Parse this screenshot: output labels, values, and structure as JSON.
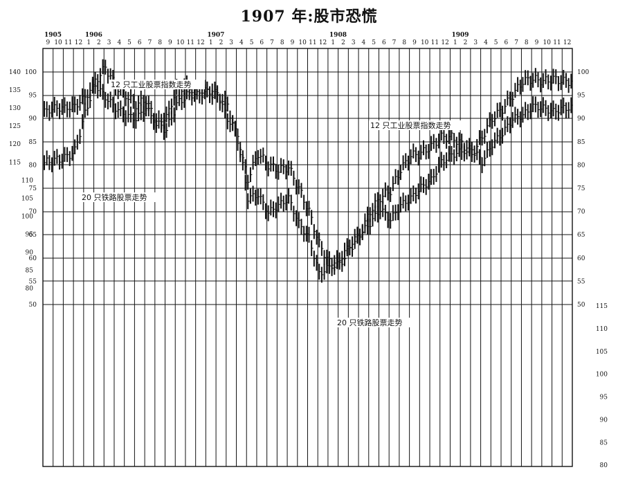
{
  "title": "1907 年:股市恐慌",
  "chart_data": {
    "type": "bar",
    "title": "1907 年:股市恐慌",
    "x_axis": {
      "years": [
        {
          "label": "1905",
          "month_index": 0
        },
        {
          "label": "1906",
          "month_index": 4
        },
        {
          "label": "1907",
          "month_index": 16
        },
        {
          "label": "1908",
          "month_index": 28
        },
        {
          "label": "1909",
          "month_index": 40
        }
      ],
      "month_labels": [
        "9",
        "10",
        "11",
        "12",
        "1",
        "2",
        "3",
        "4",
        "5",
        "6",
        "7",
        "8",
        "9",
        "10",
        "11",
        "12",
        "1",
        "2",
        "3",
        "4",
        "5",
        "6",
        "7",
        "8",
        "9",
        "10",
        "11",
        "12",
        "1",
        "2",
        "3",
        "4",
        "5",
        "6",
        "7",
        "8",
        "9",
        "10",
        "11",
        "12",
        "1",
        "2",
        "3",
        "4",
        "5",
        "6",
        "7",
        "8",
        "9",
        "10",
        "11",
        "12"
      ]
    },
    "y_axis_industrial": {
      "label": "",
      "ticks": [
        100,
        95,
        90,
        85,
        80,
        75,
        70,
        65,
        60,
        55,
        50
      ],
      "range": [
        50,
        100
      ]
    },
    "y_axis_railroad_left": {
      "label": "",
      "ticks": [
        140,
        135,
        130,
        125,
        120,
        115,
        110,
        105,
        100,
        95,
        90,
        85,
        80
      ],
      "range": [
        80,
        140
      ]
    },
    "y_axis_railroad_right": {
      "ticks": [
        115,
        110,
        105,
        100,
        95,
        90,
        85,
        80
      ],
      "range": [
        80,
        115
      ]
    },
    "grid": true,
    "annotations": [
      {
        "text": "12 只工业股票指数走势",
        "series": "industrials_upper_left"
      },
      {
        "text": "12 只工业股票指数走势",
        "series": "industrials_right"
      },
      {
        "text": "20 只铁路股票走势",
        "series": "railroads_upper_left"
      },
      {
        "text": "20 只铁路股票走势",
        "series": "railroads_lower"
      }
    ],
    "series": [
      {
        "name": "12 只工业股票指数走势",
        "axis": "industrial",
        "values": [
          80.5,
          81,
          81.5,
          83,
          91,
          98,
          101,
          97,
          95,
          93,
          94,
          89,
          87.5,
          93,
          95,
          95.5,
          95.5,
          95,
          93,
          85,
          77,
          82.5,
          80,
          79,
          79.5,
          75,
          70,
          63,
          59,
          58.5,
          62,
          65,
          70,
          73,
          74.5,
          79,
          82,
          82.5,
          84,
          86,
          86,
          84.5,
          82,
          86,
          90,
          92,
          95,
          98,
          98.5,
          98,
          98.5,
          98
        ]
      },
      {
        "name": "20 只铁路股票走势",
        "axis": "railroad",
        "values": [
          129,
          130,
          130,
          130.5,
          133,
          136.5,
          133,
          130,
          128,
          127,
          130,
          126,
          127.5,
          135,
          136,
          134,
          135,
          134,
          127,
          123,
          105,
          106,
          101,
          103,
          105,
          98,
          94,
          84,
          86,
          88,
          92,
          95,
          98,
          102,
          99,
          103,
          105,
          108,
          110,
          115,
          117,
          118,
          119,
          115,
          120,
          123,
          127,
          128,
          130.5,
          130,
          129,
          130
        ]
      }
    ]
  }
}
